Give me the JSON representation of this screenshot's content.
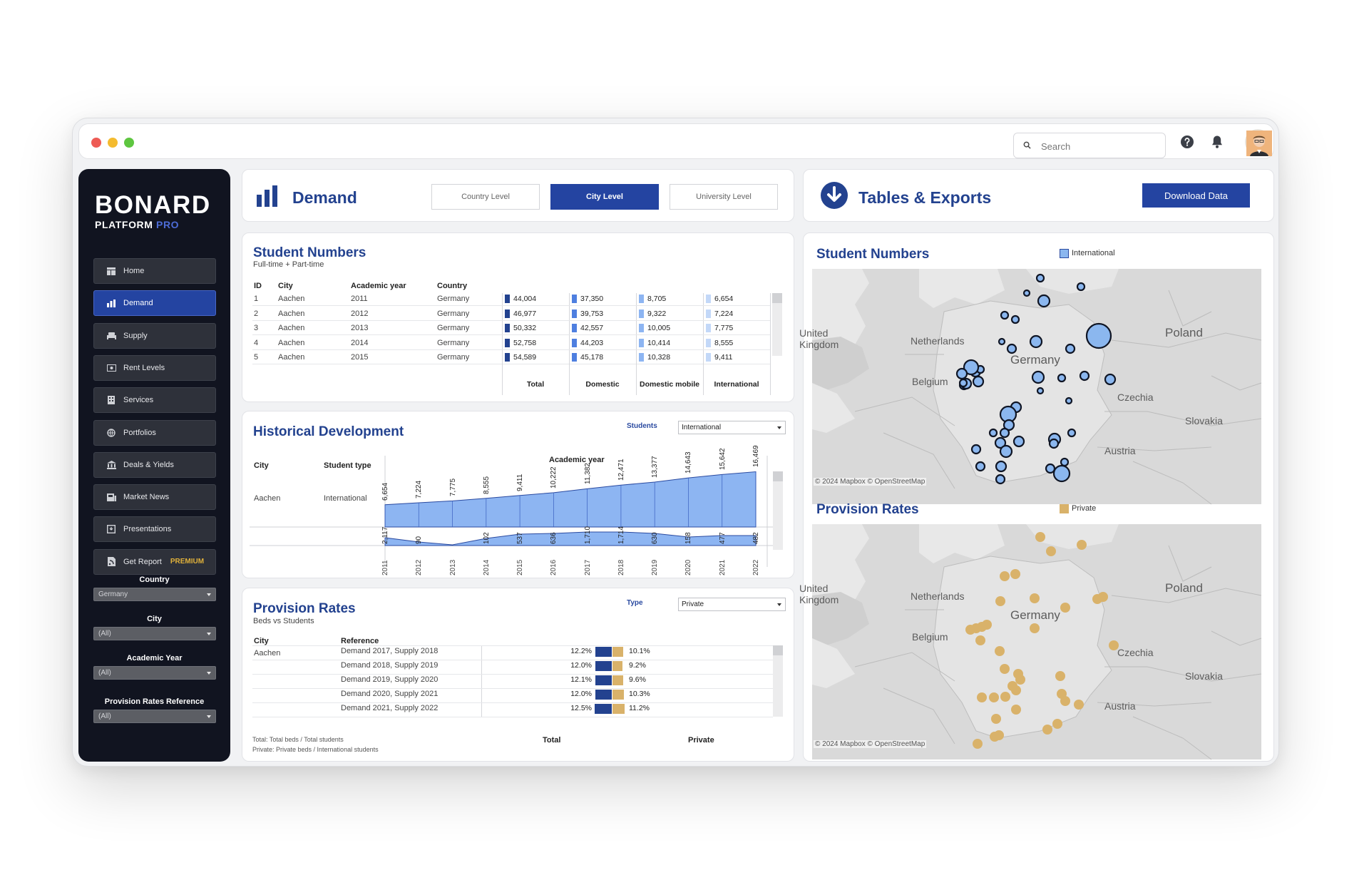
{
  "header": {
    "search_placeholder": "Search",
    "help_icon": "question-circle-icon",
    "notification_icon": "bell-icon",
    "window_controls": [
      "#ee5b55",
      "#f4bb2f",
      "#5ec640"
    ]
  },
  "sidebar": {
    "brand": "BONARD",
    "brand_sub": "PLATFORM",
    "brand_pro": "PRO",
    "items": [
      {
        "label": "Home",
        "icon": "home-icon",
        "active": false
      },
      {
        "label": "Demand",
        "icon": "bar-chart-icon",
        "active": true
      },
      {
        "label": "Supply",
        "icon": "bed-icon",
        "active": false
      },
      {
        "label": "Rent Levels",
        "icon": "money-icon",
        "active": false
      },
      {
        "label": "Services",
        "icon": "building-icon",
        "active": false
      },
      {
        "label": "Portfolios",
        "icon": "globe-icon",
        "active": false
      },
      {
        "label": "Deals & Yields",
        "icon": "bank-icon",
        "active": false
      },
      {
        "label": "Market News",
        "icon": "newspaper-icon",
        "active": false
      },
      {
        "label": "Presentations",
        "icon": "presentation-icon",
        "active": false
      },
      {
        "label": "Get Report",
        "icon": "report-icon",
        "active": false,
        "badge": "PREMIUM"
      }
    ],
    "filters": [
      {
        "label": "Country",
        "value": "Germany"
      },
      {
        "label": "City",
        "value": "(All)"
      },
      {
        "label": "Academic Year",
        "value": "(All)"
      },
      {
        "label": "Provision Rates Reference",
        "value": "(All)"
      }
    ]
  },
  "demand": {
    "title": "Demand",
    "tabs": [
      {
        "label": "Country Level",
        "active": false
      },
      {
        "label": "City Level",
        "active": true
      },
      {
        "label": "University Level",
        "active": false
      }
    ]
  },
  "exports": {
    "title": "Tables & Exports",
    "download_label": "Download Data"
  },
  "student_numbers": {
    "title": "Student Numbers",
    "subtitle": "Full-time + Part-time",
    "columns": [
      "ID",
      "City",
      "Academic year",
      "Country"
    ],
    "measure_headers": [
      "Total",
      "Domestic",
      "Domestic mobile",
      "International"
    ],
    "max": 55000,
    "rows": [
      {
        "id": "1",
        "city": "Aachen",
        "year": "2011",
        "country": "Germany",
        "total": 44004,
        "domestic": 37350,
        "domestic_mobile": 8705,
        "international": 6654,
        "total_label": "44,004",
        "domestic_label": "37,350",
        "mobile_label": "8,705",
        "intl_label": "6,654"
      },
      {
        "id": "2",
        "city": "Aachen",
        "year": "2012",
        "country": "Germany",
        "total": 46977,
        "domestic": 39753,
        "domestic_mobile": 9322,
        "international": 7224,
        "total_label": "46,977",
        "domestic_label": "39,753",
        "mobile_label": "9,322",
        "intl_label": "7,224"
      },
      {
        "id": "3",
        "city": "Aachen",
        "year": "2013",
        "country": "Germany",
        "total": 50332,
        "domestic": 42557,
        "domestic_mobile": 10005,
        "international": 7775,
        "total_label": "50,332",
        "domestic_label": "42,557",
        "mobile_label": "10,005",
        "intl_label": "7,775"
      },
      {
        "id": "4",
        "city": "Aachen",
        "year": "2014",
        "country": "Germany",
        "total": 52758,
        "domestic": 44203,
        "domestic_mobile": 10414,
        "international": 8555,
        "total_label": "52,758",
        "domestic_label": "44,203",
        "mobile_label": "10,414",
        "intl_label": "8,555"
      },
      {
        "id": "5",
        "city": "Aachen",
        "year": "2015",
        "country": "Germany",
        "total": 54589,
        "domestic": 45178,
        "domestic_mobile": 10328,
        "international": 9411,
        "total_label": "54,589",
        "domestic_label": "45,178",
        "mobile_label": "10,328",
        "intl_label": "9,411"
      }
    ]
  },
  "historical": {
    "title": "Historical Development",
    "students_label": "Students",
    "students_value": "International",
    "col_city": "City",
    "col_type": "Student type",
    "col_axis": "Academic year",
    "city": "Aachen",
    "type": "International"
  },
  "provision": {
    "title": "Provision Rates",
    "subtitle": "Beds vs Students",
    "type_label": "Type",
    "type_value": "Private",
    "col_city": "City",
    "col_ref": "Reference",
    "city": "Aachen",
    "footer_total": "Total",
    "footer_private": "Private",
    "notes": [
      "Total: Total beds / Total students",
      "Private: Private beds / International students"
    ],
    "rows": [
      {
        "ref": "Demand 2017, Supply 2018",
        "total": 12.2,
        "private": 10.1,
        "total_label": "12.2%",
        "private_label": "10.1%"
      },
      {
        "ref": "Demand 2018, Supply 2019",
        "total": 12.0,
        "private": 9.2,
        "total_label": "12.0%",
        "private_label": "9.2%"
      },
      {
        "ref": "Demand 2019, Supply 2020",
        "total": 12.1,
        "private": 9.6,
        "total_label": "12.1%",
        "private_label": "9.6%"
      },
      {
        "ref": "Demand 2020, Supply 2021",
        "total": 12.0,
        "private": 10.3,
        "total_label": "12.0%",
        "private_label": "10.3%"
      },
      {
        "ref": "Demand 2021, Supply 2022",
        "total": 12.5,
        "private": 11.2,
        "total_label": "12.5%",
        "private_label": "11.2%"
      }
    ]
  },
  "map_students": {
    "title": "Student Numbers",
    "legend": "International",
    "legend_color": "#8bb7ef",
    "attribution": "© 2024 Mapbox  © OpenStreetMap",
    "labels": [
      "Netherlands",
      "Germany",
      "Belgium",
      "Poland",
      "Czechia",
      "Slovakia",
      "Austria",
      "United Kingdom"
    ]
  },
  "map_provision": {
    "title": "Provision Rates",
    "legend": "Private",
    "legend_color": "#d9b26a",
    "attribution": "© 2024 Mapbox  © OpenStreetMap",
    "labels": [
      "Netherlands",
      "Germany",
      "Belgium",
      "Poland",
      "Czechia",
      "Slovakia",
      "Austria",
      "United Kingdom"
    ]
  },
  "chart_data": {
    "type": "area",
    "x": [
      "2011",
      "2012",
      "2013",
      "2014",
      "2015",
      "2016",
      "2017",
      "2018",
      "2019",
      "2020",
      "2021",
      "2022"
    ],
    "series": [
      {
        "name": "International",
        "values": [
          6654,
          7224,
          7775,
          8555,
          9411,
          10222,
          11382,
          12471,
          13377,
          14643,
          15642,
          16469
        ],
        "labels": [
          "6,654",
          "7,224",
          "7,775",
          "8,555",
          "9,411",
          "10,222",
          "11,382",
          "12,471",
          "13,377",
          "14,643",
          "15,642",
          "16,469"
        ]
      },
      {
        "labels": [
          "2,117",
          "90",
          "",
          "102",
          "537",
          "636",
          "1,710",
          "1,714",
          "630",
          "158",
          "477",
          "482"
        ]
      }
    ],
    "xlabel": "Academic year",
    "ylabel": "",
    "grid": false
  }
}
